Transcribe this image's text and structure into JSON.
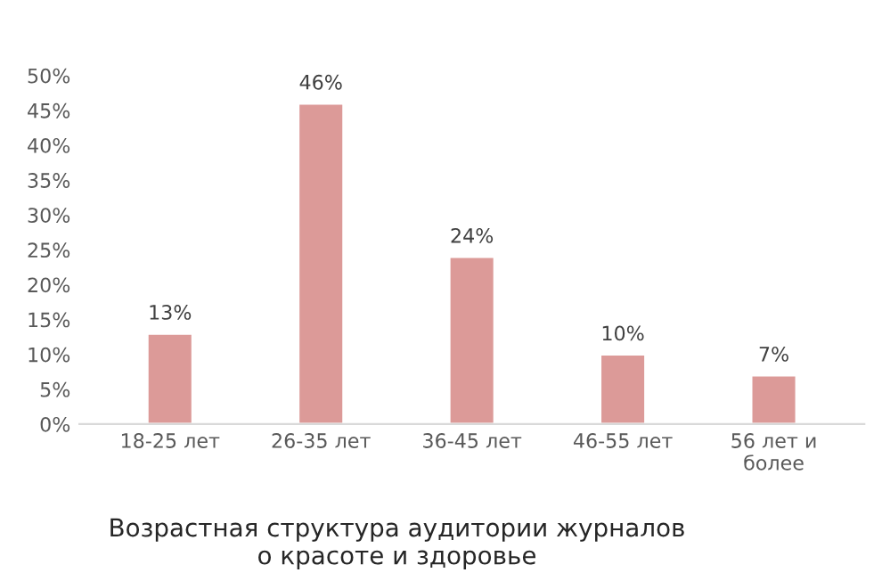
{
  "chart_data": {
    "type": "bar",
    "title": "Возрастная структура аудитории журналов\nо красоте и здоровье",
    "categories": [
      "18-25 лет",
      "26-35 лет",
      "36-45 лет",
      "46-55 лет",
      "56 лет и\nболее"
    ],
    "values": [
      13,
      46,
      24,
      10,
      7
    ],
    "color": "#dc9a98",
    "value_labels": [
      "13%",
      "46%",
      "24%",
      "10%",
      "7%"
    ],
    "ylim": [
      0,
      50
    ],
    "yticks": [
      {
        "value": 0,
        "label": "0%"
      },
      {
        "value": 5,
        "label": "5%"
      },
      {
        "value": 10,
        "label": "10%"
      },
      {
        "value": 15,
        "label": "15%"
      },
      {
        "value": 20,
        "label": "20%"
      },
      {
        "value": 25,
        "label": "25%"
      },
      {
        "value": 30,
        "label": "30%"
      },
      {
        "value": 35,
        "label": "35%"
      },
      {
        "value": 40,
        "label": "40%"
      },
      {
        "value": 45,
        "label": "45%"
      },
      {
        "value": 50,
        "label": "50%"
      }
    ],
    "grid": false,
    "legend": false
  }
}
